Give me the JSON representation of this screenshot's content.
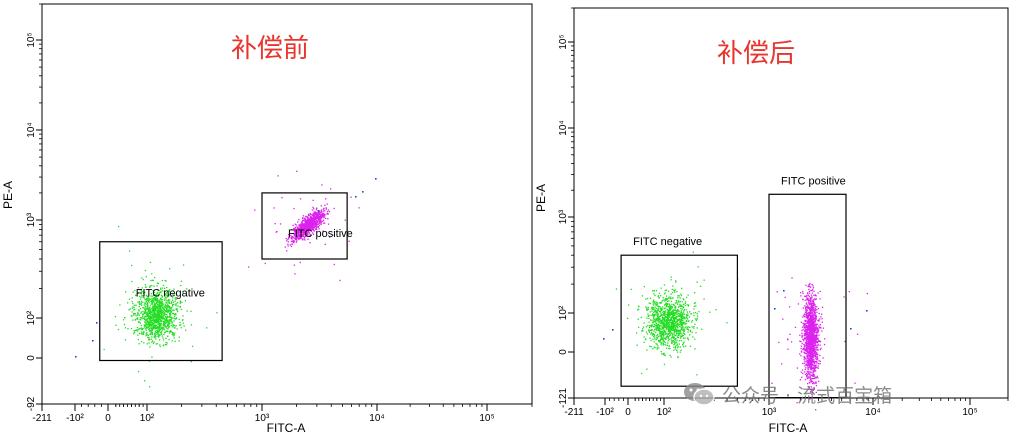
{
  "chart_data": [
    {
      "type": "scatter",
      "title": "补偿前",
      "xlabel": "FITC-A",
      "ylabel": "PE-A",
      "x_scale": "biexponential",
      "y_scale": "biexponential",
      "xlim": [
        -211,
        200000
      ],
      "ylim": [
        -92,
        200000
      ],
      "x_ticks": [
        {
          "value": -211,
          "label": "-211"
        },
        {
          "value": -100,
          "label": "-10²"
        },
        {
          "value": 0,
          "label": "0"
        },
        {
          "value": 100,
          "label": "10²"
        },
        {
          "value": 1000,
          "label": "10³"
        },
        {
          "value": 10000,
          "label": "10⁴"
        },
        {
          "value": 100000,
          "label": "10⁵"
        }
      ],
      "y_ticks": [
        {
          "value": -92,
          "label": "-92"
        },
        {
          "value": 0,
          "label": "0"
        },
        {
          "value": 100,
          "label": "10²"
        },
        {
          "value": 1000,
          "label": "10³"
        },
        {
          "value": 10000,
          "label": "10⁴"
        },
        {
          "value": 100000,
          "label": "10⁵"
        }
      ],
      "gates": [
        {
          "label": "FITC negative",
          "x": [
            -25,
            450
          ],
          "y": [
            -5,
            600
          ]
        },
        {
          "label": "FITC positive",
          "x": [
            1000,
            5500
          ],
          "y": [
            400,
            2000
          ]
        }
      ],
      "populations": [
        {
          "name": "FITC negative",
          "color": "#22dd22",
          "center": [
            120,
            110
          ],
          "count": 1100
        },
        {
          "name": "FITC positive",
          "color": "#dd22ee",
          "center": [
            2500,
            900
          ],
          "count": 900
        }
      ]
    },
    {
      "type": "scatter",
      "title": "补偿后",
      "xlabel": "FITC-A",
      "ylabel": "PE-A",
      "x_scale": "biexponential",
      "y_scale": "biexponential",
      "xlim": [
        -211,
        200000
      ],
      "ylim": [
        -121,
        200000
      ],
      "x_ticks": [
        {
          "value": -211,
          "label": "-211"
        },
        {
          "value": -100,
          "label": "-10²"
        },
        {
          "value": 0,
          "label": "0"
        },
        {
          "value": 100,
          "label": "10²"
        },
        {
          "value": 1000,
          "label": "10³"
        },
        {
          "value": 10000,
          "label": "10⁴"
        },
        {
          "value": 100000,
          "label": "10⁵"
        }
      ],
      "y_ticks": [
        {
          "value": -121,
          "label": "-121"
        },
        {
          "value": 0,
          "label": "0"
        },
        {
          "value": 100,
          "label": "10²"
        },
        {
          "value": 1000,
          "label": "10³"
        },
        {
          "value": 10000,
          "label": "10⁴"
        },
        {
          "value": 100000,
          "label": "10⁵"
        }
      ],
      "gates": [
        {
          "label": "FITC negative",
          "x": [
            -30,
            500
          ],
          "y": [
            -90,
            400
          ]
        },
        {
          "label": "FITC positive",
          "x": [
            1000,
            5500
          ],
          "y": [
            -120,
            1800
          ]
        }
      ],
      "populations": [
        {
          "name": "FITC negative",
          "color": "#22dd22",
          "center": [
            110,
            80
          ],
          "count": 1100
        },
        {
          "name": "FITC positive",
          "color": "#dd22ee",
          "center": [
            2500,
            40
          ],
          "count": 1300
        }
      ]
    }
  ],
  "watermark": {
    "text": "公众号 · 流式百宝箱",
    "icon": "wechat-icon"
  }
}
